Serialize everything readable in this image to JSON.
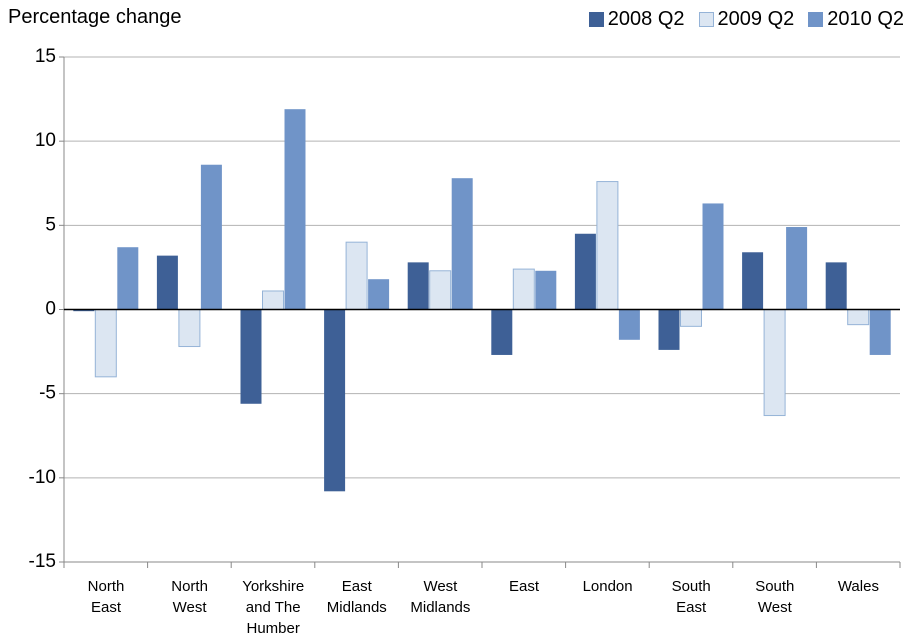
{
  "chart_data": {
    "type": "bar",
    "ylabel": "Percentage change",
    "categories": [
      "North\nEast",
      "North\nWest",
      "Yorkshire\nand The\nHumber",
      "East\nMidlands",
      "West\nMidlands",
      "East",
      "London",
      "South\nEast",
      "South\nWest",
      "Wales"
    ],
    "series": [
      {
        "name": "2008 Q2",
        "color": "#3e6096",
        "values": [
          -0.1,
          3.2,
          -5.6,
          -10.8,
          2.8,
          -2.7,
          4.5,
          -2.4,
          3.4,
          2.8
        ]
      },
      {
        "name": "2009 Q2",
        "color": "#dce6f2",
        "edgecolor": "#95b3d7",
        "values": [
          -4.0,
          -2.2,
          1.1,
          4.0,
          2.3,
          2.4,
          7.6,
          -1.0,
          -6.3,
          -0.9
        ]
      },
      {
        "name": "2010 Q2",
        "color": "#7094c8",
        "values": [
          3.7,
          8.6,
          11.9,
          1.8,
          7.8,
          2.3,
          -1.8,
          6.3,
          4.9,
          -2.7
        ]
      }
    ],
    "ylim": [
      -15,
      15
    ],
    "yticks": [
      -15,
      -10,
      -5,
      0,
      5,
      10,
      15
    ],
    "grid": true
  }
}
